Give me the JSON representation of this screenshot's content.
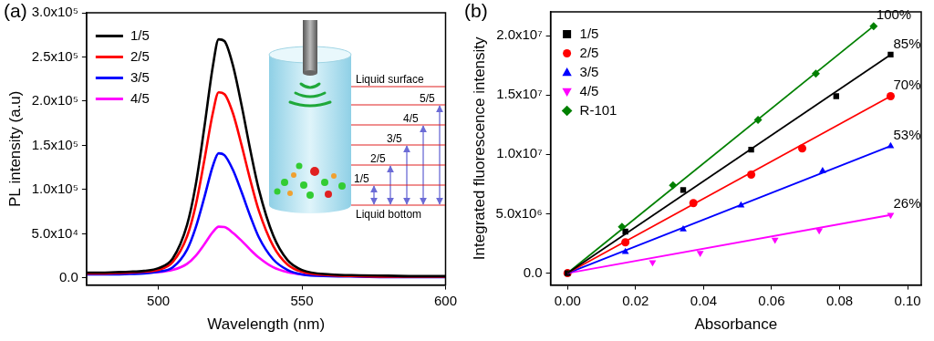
{
  "chart_data": [
    {
      "type": "line",
      "title": "(a)",
      "x_label": "Wavelength (nm)",
      "y_label": "PL intensity (a.u)",
      "x": [
        475,
        480,
        485,
        490,
        495,
        500,
        505,
        510,
        513,
        516,
        519,
        521,
        523,
        526,
        529,
        532,
        535,
        540,
        545,
        550,
        560,
        570,
        580,
        590,
        600
      ],
      "series": [
        {
          "name": "1/5",
          "color": "#000000",
          "values": [
            6000,
            6000,
            6500,
            7000,
            8000,
            11000,
            22000,
            60000,
            105000,
            170000,
            240000,
            270000,
            268000,
            240000,
            195000,
            145000,
            100000,
            48000,
            20000,
            9000,
            4000,
            3000,
            2500,
            2000,
            2000
          ]
        },
        {
          "name": "2/5",
          "color": "#ff0000",
          "values": [
            5000,
            5000,
            5500,
            6000,
            7000,
            9000,
            18000,
            47000,
            82000,
            133000,
            187000,
            210000,
            208000,
            186000,
            150000,
            111000,
            76000,
            36000,
            15000,
            7000,
            3000,
            2000,
            1500,
            1500,
            1500
          ]
        },
        {
          "name": "3/5",
          "color": "#0000ff",
          "values": [
            4000,
            4000,
            4000,
            4500,
            5000,
            7000,
            12000,
            32000,
            57000,
            91000,
            127000,
            141000,
            139000,
            122000,
            97000,
            70000,
            46000,
            21000,
            9000,
            4000,
            2000,
            1500,
            1000,
            1000,
            1000
          ]
        },
        {
          "name": "4/5",
          "color": "#ff00ff",
          "values": [
            5000,
            5000,
            5200,
            5500,
            6000,
            6500,
            9000,
            16000,
            25000,
            38000,
            52000,
            58000,
            57500,
            51000,
            42000,
            32000,
            23000,
            12000,
            6500,
            4000,
            2500,
            2000,
            1500,
            1500,
            1500
          ]
        }
      ],
      "xlim": [
        475,
        600
      ],
      "xticks": [
        500,
        550,
        600
      ],
      "ylim": [
        -8000,
        300000
      ],
      "yticks": [
        {
          "value": 0,
          "label": "0.0"
        },
        {
          "value": 50000,
          "label": "5.0x10⁴"
        },
        {
          "value": 100000,
          "label": "1.0x10⁵"
        },
        {
          "value": 150000,
          "label": "1.5x10⁵"
        },
        {
          "value": 200000,
          "label": "2.0x10⁵"
        },
        {
          "value": 250000,
          "label": "2.5x10⁵"
        },
        {
          "value": 300000,
          "label": "3.0x10⁵"
        }
      ],
      "grid": false,
      "legend": "upper left",
      "annotations": [
        "Liquid surface",
        "5/5",
        "4/5",
        "3/5",
        "2/5",
        "1/5",
        "Liquid bottom"
      ]
    },
    {
      "type": "scatter",
      "title": "(b)",
      "x_label": "Absorbance",
      "y_label": "Integrated fluorescence intensity",
      "series": [
        {
          "name": "1/5",
          "color": "#000000",
          "marker": "square",
          "x": [
            0,
            0.017,
            0.034,
            0.054,
            0.079,
            0.095
          ],
          "values": [
            0,
            3500000,
            7000000,
            10400000,
            14900000,
            18400000
          ],
          "fit": {
            "x": [
              0,
              0.095
            ],
            "values": [
              0,
              18400000
            ]
          }
        },
        {
          "name": "2/5",
          "color": "#ff0000",
          "marker": "circle",
          "x": [
            0,
            0.017,
            0.037,
            0.054,
            0.069,
            0.095
          ],
          "values": [
            0,
            2600000,
            5900000,
            8300000,
            10500000,
            14900000
          ],
          "fit": {
            "x": [
              0,
              0.095
            ],
            "values": [
              0,
              14900000
            ]
          }
        },
        {
          "name": "3/5",
          "color": "#0000ff",
          "marker": "triangle_up",
          "x": [
            0,
            0.017,
            0.034,
            0.051,
            0.075,
            0.095
          ],
          "values": [
            0,
            1800000,
            3700000,
            5700000,
            8600000,
            10700000
          ],
          "fit": {
            "x": [
              0,
              0.095
            ],
            "values": [
              0,
              10700000
            ]
          }
        },
        {
          "name": "4/5",
          "color": "#ff00ff",
          "marker": "triangle_down",
          "x": [
            0,
            0.025,
            0.039,
            0.061,
            0.074,
            0.095
          ],
          "values": [
            0,
            900000,
            1700000,
            2800000,
            3600000,
            4900000
          ],
          "fit": {
            "x": [
              0,
              0.095
            ],
            "values": [
              0,
              4900000
            ]
          }
        },
        {
          "name": "R-101",
          "color": "#008000",
          "marker": "diamond",
          "x": [
            0,
            0.016,
            0.031,
            0.056,
            0.073,
            0.09
          ],
          "values": [
            0,
            3900000,
            7400000,
            12900000,
            16800000,
            20800000
          ],
          "fit": {
            "x": [
              0,
              0.09
            ],
            "values": [
              0,
              20800000
            ]
          }
        }
      ],
      "xlim": [
        -0.005,
        0.104
      ],
      "xticks": [
        {
          "value": 0,
          "label": "0.00"
        },
        {
          "value": 0.02,
          "label": "0.02"
        },
        {
          "value": 0.04,
          "label": "0.04"
        },
        {
          "value": 0.06,
          "label": "0.06"
        },
        {
          "value": 0.08,
          "label": "0.08"
        },
        {
          "value": 0.1,
          "label": "0.10"
        }
      ],
      "ylim": [
        -1000000,
        22000000
      ],
      "yticks": [
        {
          "value": 0,
          "label": "0.0"
        },
        {
          "value": 5000000,
          "label": "5.0x10⁶"
        },
        {
          "value": 10000000,
          "label": "1.0x10⁷"
        },
        {
          "value": 15000000,
          "label": "1.5x10⁷"
        },
        {
          "value": 20000000,
          "label": "2.0x10⁷"
        }
      ],
      "grid": false,
      "legend": "upper left",
      "annotations": [
        {
          "text": "100%",
          "series": "R-101"
        },
        {
          "text": "85%",
          "series": "1/5"
        },
        {
          "text": "70%",
          "series": "2/5"
        },
        {
          "text": "53%",
          "series": "3/5"
        },
        {
          "text": "26%",
          "series": "4/5"
        }
      ]
    }
  ]
}
